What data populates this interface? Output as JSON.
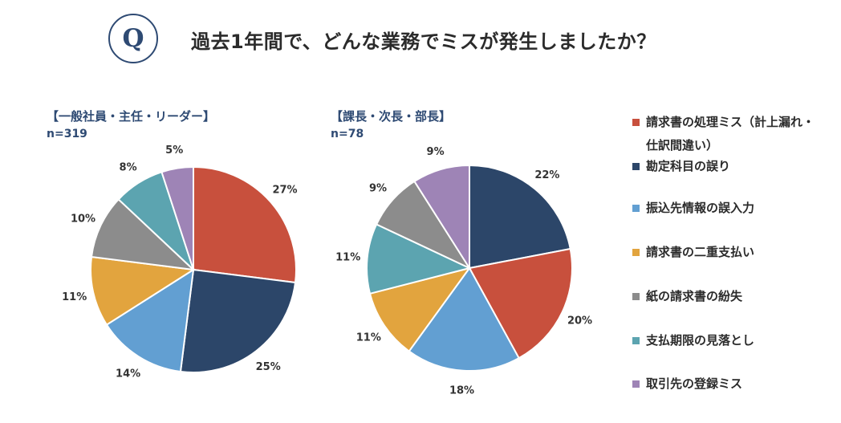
{
  "header": {
    "badge": "Q",
    "title": "過去1年間で、どんな業務でミスが発生しましたか？"
  },
  "legend": [
    {
      "label": "請求書の処理ミス（計上漏れ・仕訳間違い）",
      "color": "#c8503d"
    },
    {
      "label": "勘定科目の誤り",
      "color": "#2c4669"
    },
    {
      "label": "振込先情報の誤入力",
      "color": "#629fd2"
    },
    {
      "label": "請求書の二重支払い",
      "color": "#e2a43e"
    },
    {
      "label": "紙の請求書の紛失",
      "color": "#8c8c8c"
    },
    {
      "label": "支払期限の見落とし",
      "color": "#5ca4b0"
    },
    {
      "label": "取引先の登録ミス",
      "color": "#9e84b6"
    }
  ],
  "chart_data": [
    {
      "type": "pie",
      "group_label": "【一般社員・主任・リーダー】",
      "n_label": "n=319",
      "slices": [
        {
          "label": "請求書の処理ミス（計上漏れ・仕訳間違い）",
          "value": 27,
          "display": "27%",
          "color": "#c8503d"
        },
        {
          "label": "勘定科目の誤り",
          "value": 25,
          "display": "25%",
          "color": "#2c4669"
        },
        {
          "label": "振込先情報の誤入力",
          "value": 14,
          "display": "14%",
          "color": "#629fd2"
        },
        {
          "label": "請求書の二重支払い",
          "value": 11,
          "display": "11%",
          "color": "#e2a43e"
        },
        {
          "label": "紙の請求書の紛失",
          "value": 10,
          "display": "10%",
          "color": "#8c8c8c"
        },
        {
          "label": "支払期限の見落とし",
          "value": 8,
          "display": "8%",
          "color": "#5ca4b0"
        },
        {
          "label": "取引先の登録ミス",
          "value": 5,
          "display": "5%",
          "color": "#9e84b6"
        }
      ]
    },
    {
      "type": "pie",
      "group_label": "【課長・次長・部長】",
      "n_label": "n=78",
      "slices": [
        {
          "label": "勘定科目の誤り",
          "value": 22,
          "display": "22%",
          "color": "#2c4669"
        },
        {
          "label": "請求書の処理ミス（計上漏れ・仕訳間違い）",
          "value": 20,
          "display": "20%",
          "color": "#c8503d"
        },
        {
          "label": "振込先情報の誤入力",
          "value": 18,
          "display": "18%",
          "color": "#629fd2"
        },
        {
          "label": "請求書の二重支払い",
          "value": 11,
          "display": "11%",
          "color": "#e2a43e"
        },
        {
          "label": "支払期限の見落とし",
          "value": 11,
          "display": "11%",
          "color": "#5ca4b0"
        },
        {
          "label": "紙の請求書の紛失",
          "value": 9,
          "display": "9%",
          "color": "#8c8c8c"
        },
        {
          "label": "取引先の登録ミス",
          "value": 9,
          "display": "9%",
          "color": "#9e84b6"
        }
      ]
    }
  ]
}
